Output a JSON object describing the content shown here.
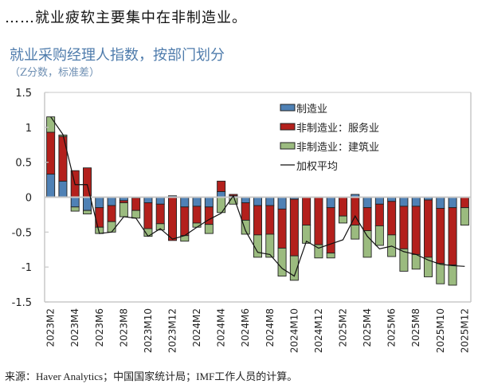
{
  "headline": "……就业疲软主要集中在非制造业。",
  "footer": "来源：Haver Analytics；中国国家统计局；IMF工作人员的计算。",
  "colors": {
    "manufacturing": "#4f81b5",
    "services": "#b3201c",
    "construction": "#9bbb7f",
    "line": "#111111",
    "axis": "#c8c8c8"
  },
  "chart_data": {
    "type": "bar",
    "stacked": true,
    "title": "就业采购经理人指数，按部门划分",
    "subtitle": "（Z分数，标准差）",
    "xlabel": "",
    "ylabel": "",
    "ylim": [
      -1.5,
      1.5
    ],
    "yticks": [
      "1.5",
      "1",
      "0.5",
      "0",
      "-0.5",
      "-1",
      "-1.5"
    ],
    "ytick_values": [
      1.5,
      1,
      0.5,
      0,
      -0.5,
      -1,
      -1.5
    ],
    "legend_position": "top-right",
    "categories": [
      "2023M2",
      "2023M3",
      "2023M4",
      "2023M5",
      "2023M6",
      "2023M7",
      "2023M8",
      "2023M9",
      "2023M10",
      "2023M11",
      "2023M12",
      "2024M1",
      "2024M2",
      "2024M3",
      "2024M4",
      "2024M5",
      "2024M6",
      "2024M7",
      "2024M8",
      "2024M9",
      "2024M10",
      "2024M11",
      "2024M12",
      "2025M1",
      "2025M2",
      "2025M3",
      "2025M4",
      "2025M5",
      "2025M6",
      "2025M7",
      "2025M8",
      "2025M9",
      "2025M10",
      "2025M11",
      "2025M12"
    ],
    "xtick_labels": [
      "2023M2",
      "2023M4",
      "2023M6",
      "2023M8",
      "2023M10",
      "2023M12",
      "2024M2",
      "2024M4",
      "2024M6",
      "2024M8",
      "2024M10",
      "2024M12",
      "2025M2",
      "2025M4",
      "2025M6",
      "2025M8",
      "2025M10",
      "2025M12"
    ],
    "series": [
      {
        "name": "制造业",
        "kind": "bar",
        "values": [
          0.33,
          0.23,
          -0.14,
          -0.19,
          -0.15,
          -0.12,
          -0.05,
          -0.01,
          -0.08,
          -0.1,
          0.02,
          -0.14,
          -0.13,
          -0.14,
          0.08,
          0.02,
          -0.08,
          -0.12,
          -0.12,
          -0.17,
          -0.03,
          0,
          0,
          -0.15,
          0,
          0.04,
          -0.15,
          -0.1,
          -0.06,
          -0.13,
          -0.13,
          -0.04,
          -0.16,
          -0.15,
          0
        ]
      },
      {
        "name": "非制造业：服务业",
        "kind": "bar",
        "values": [
          0.6,
          0.64,
          0.38,
          0.42,
          -0.28,
          -0.23,
          -0.03,
          -0.18,
          -0.37,
          -0.28,
          -0.62,
          -0.41,
          -0.24,
          -0.25,
          0.15,
          0.02,
          -0.25,
          -0.42,
          -0.41,
          -0.56,
          -0.81,
          -0.4,
          -0.68,
          -0.65,
          -0.27,
          -0.4,
          -0.33,
          -0.31,
          -0.48,
          -0.61,
          -0.69,
          -0.82,
          -0.79,
          -0.82,
          -0.15
        ]
      },
      {
        "name": "非制造业：建筑业",
        "kind": "bar",
        "values": [
          0.22,
          0.02,
          -0.06,
          -0.05,
          -0.09,
          -0.15,
          -0.2,
          -0.11,
          -0.11,
          -0.09,
          0,
          -0.08,
          -0.06,
          -0.13,
          -0.22,
          -0.1,
          -0.2,
          -0.32,
          -0.33,
          -0.4,
          -0.35,
          -0.26,
          -0.19,
          -0.07,
          -0.1,
          -0.2,
          -0.38,
          -0.28,
          -0.31,
          -0.32,
          -0.21,
          -0.28,
          -0.29,
          -0.29,
          -0.25
        ]
      },
      {
        "name": "加权平均",
        "kind": "line",
        "values": [
          1.15,
          0.9,
          0.18,
          0.18,
          -0.52,
          -0.5,
          -0.28,
          -0.3,
          -0.56,
          -0.45,
          -0.6,
          -0.55,
          -0.43,
          -0.32,
          -0.23,
          0.02,
          -0.48,
          -0.79,
          -0.82,
          -1.02,
          -1.13,
          -0.63,
          -0.73,
          -0.67,
          -0.61,
          -0.27,
          -0.56,
          -0.74,
          -0.7,
          -0.78,
          -0.82,
          -0.9,
          -0.96,
          -0.98,
          -0.99
        ]
      }
    ]
  }
}
